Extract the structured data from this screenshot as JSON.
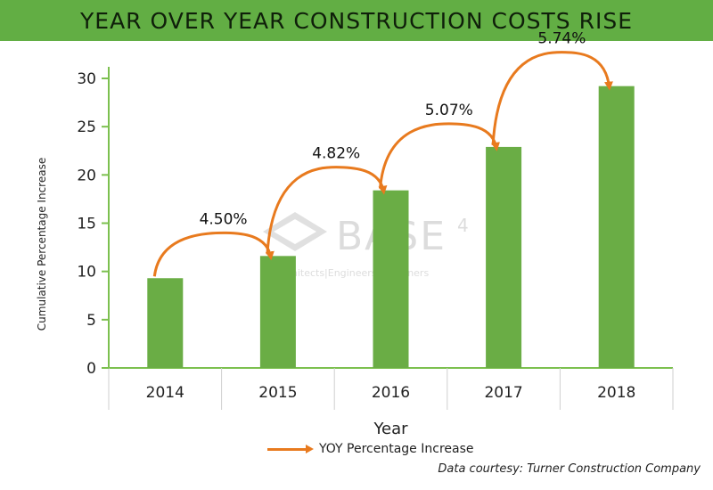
{
  "header": {
    "title": "YEAR OVER YEAR CONSTRUCTION COSTS RISE"
  },
  "watermark": {
    "name": "BASE",
    "superscript": "4",
    "tagline": "Architects|Engineers|Designers"
  },
  "credit": "Data courtesy: Turner Construction Company",
  "legend": {
    "label": "YOY Percentage Increase"
  },
  "colors": {
    "banner": "#62ae44",
    "bar": "#6aad45",
    "arrow": "#e87a1e",
    "axis": "#7cc04f"
  },
  "chart_data": {
    "type": "bar",
    "categories": [
      "2014",
      "2015",
      "2016",
      "2017",
      "2018"
    ],
    "values": [
      9.3,
      11.6,
      18.4,
      22.9,
      29.2
    ],
    "xlabel": "Year",
    "ylabel": "Cumulative Percentage Increase",
    "ylim": [
      0,
      30
    ],
    "yticks": [
      0,
      5,
      10,
      15,
      20,
      25,
      30
    ],
    "grid": false,
    "legend_position": "bottom",
    "annotations": [
      {
        "from": "2014",
        "to": "2015",
        "label": "4.50%"
      },
      {
        "from": "2015",
        "to": "2016",
        "label": "4.82%"
      },
      {
        "from": "2016",
        "to": "2017",
        "label": "5.07%"
      },
      {
        "from": "2017",
        "to": "2018",
        "label": "5.74%"
      }
    ],
    "arrow_series": {
      "name": "YOY Percentage Increase"
    }
  }
}
